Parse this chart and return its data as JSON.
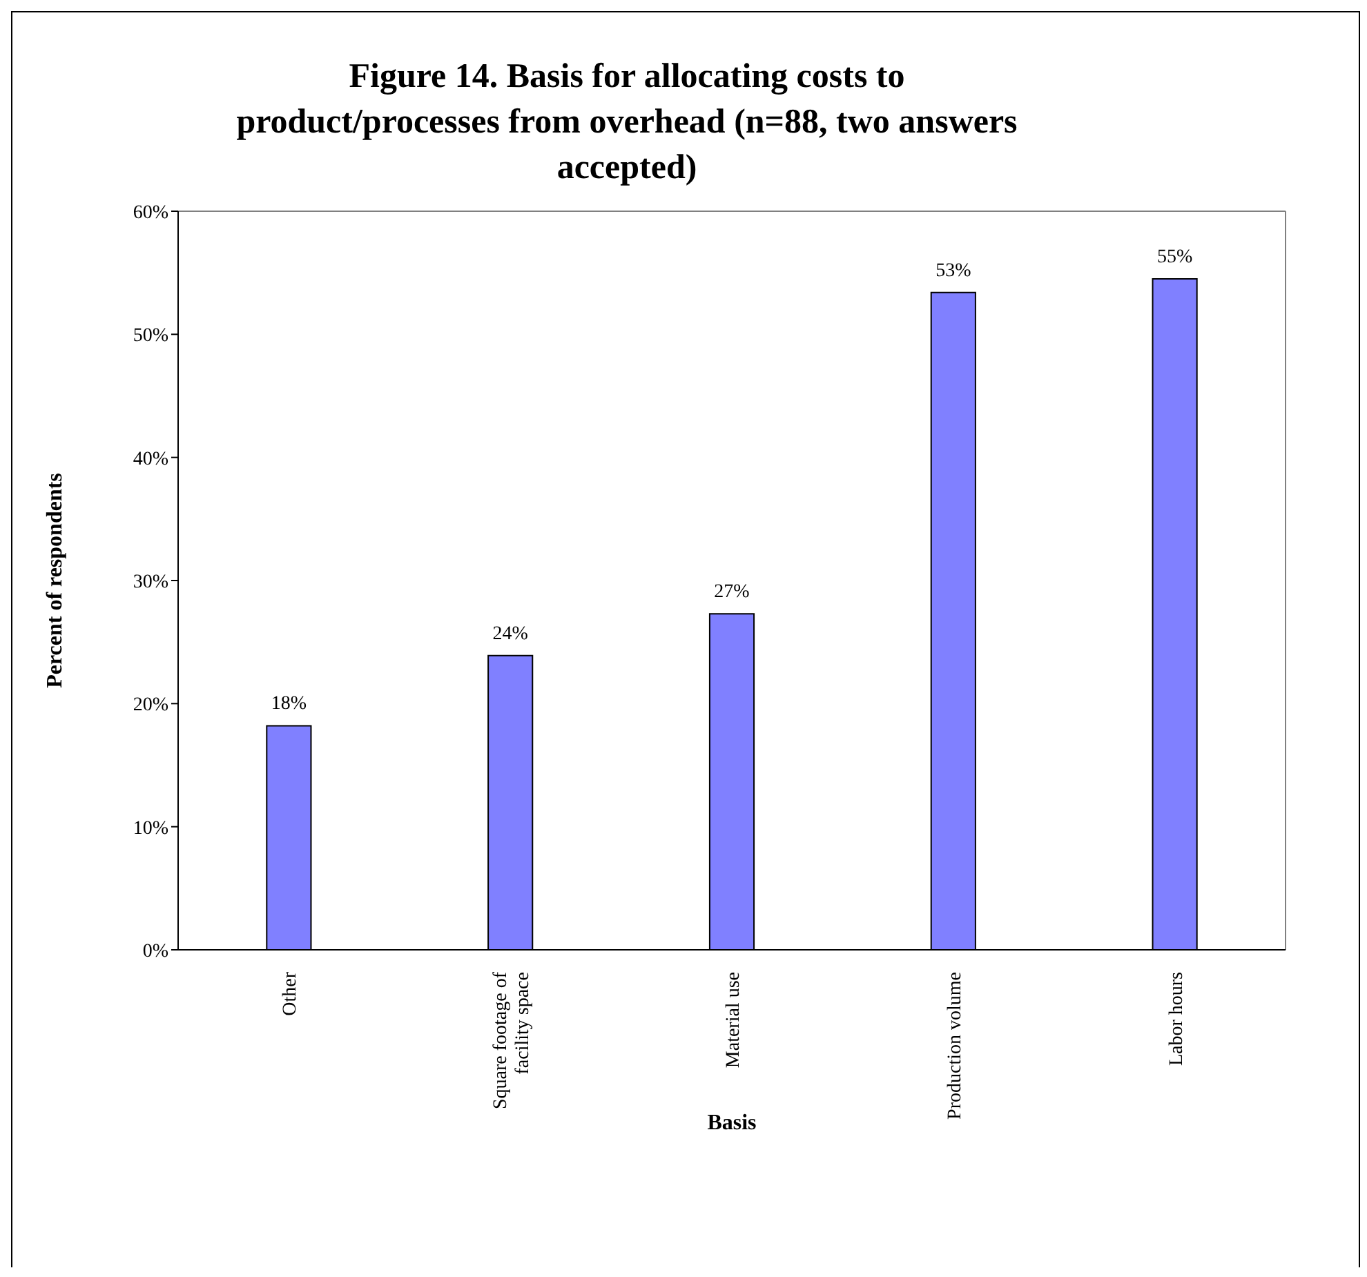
{
  "chart_data": {
    "type": "bar",
    "title": "Figure 14.  Basis for allocating costs to product/processes from overhead (n=88, two answers accepted)",
    "xlabel": "Basis",
    "ylabel": "Percent of respondents",
    "categories": [
      "Other",
      "Square footage of facility space",
      "Material use",
      "Production volume",
      "Labor hours"
    ],
    "values": [
      18.2,
      23.9,
      27.3,
      53.4,
      54.5
    ],
    "value_labels": [
      "18%",
      "24%",
      "27%",
      "53%",
      "55%"
    ],
    "color": "#8080ff",
    "ylim": [
      0,
      60
    ],
    "yticks": [
      {
        "value": 0,
        "label": "0%"
      },
      {
        "value": 10,
        "label": "10%"
      },
      {
        "value": 20,
        "label": "20%"
      },
      {
        "value": 30,
        "label": "30%"
      },
      {
        "value": 40,
        "label": "40%"
      },
      {
        "value": 50,
        "label": "50%"
      },
      {
        "value": 60,
        "label": "60%"
      }
    ],
    "grid": false,
    "legend": false
  }
}
